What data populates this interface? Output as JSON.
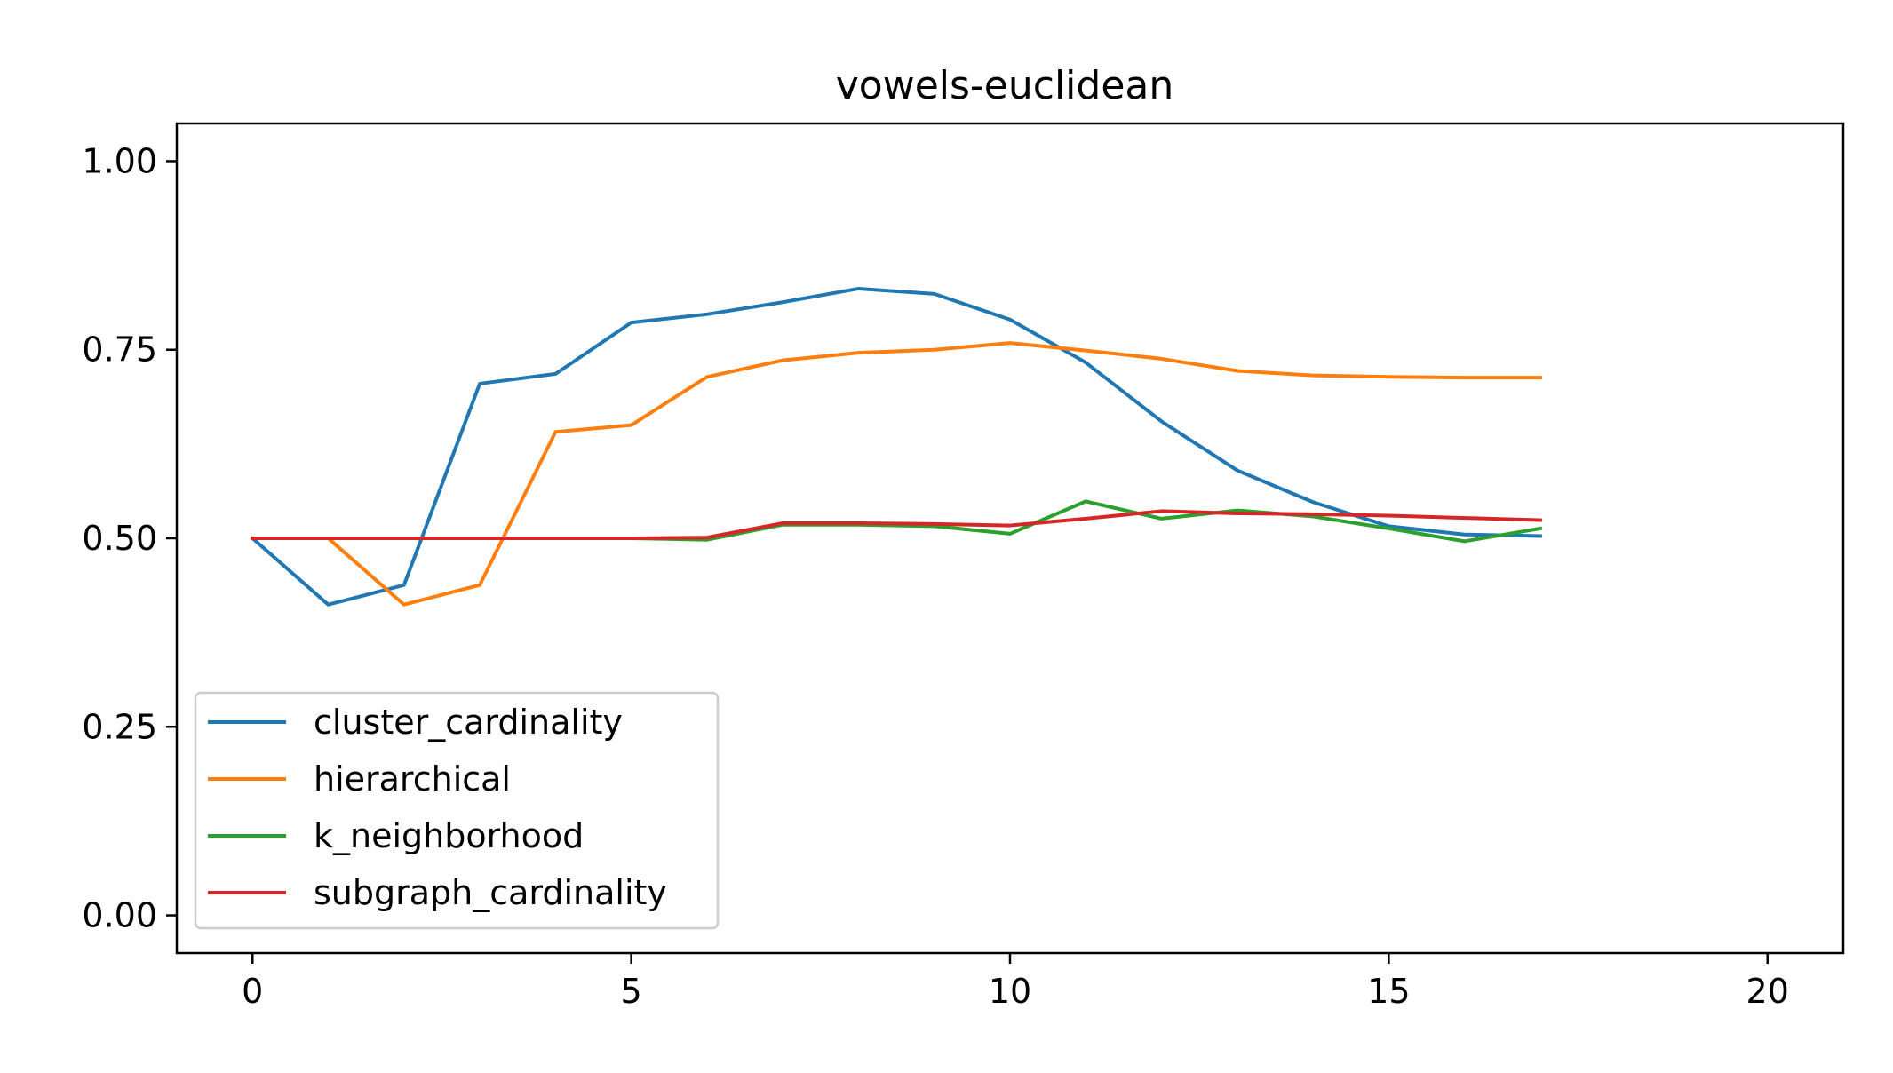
{
  "chart_data": {
    "type": "line",
    "title": "vowels-euclidean",
    "xlabel": "",
    "ylabel": "",
    "xlim": [
      -1,
      21
    ],
    "ylim": [
      -0.05,
      1.05
    ],
    "xticks": [
      0,
      5,
      10,
      15,
      20
    ],
    "xtick_labels": [
      "0",
      "5",
      "10",
      "15",
      "20"
    ],
    "yticks": [
      0.0,
      0.25,
      0.5,
      0.75,
      1.0
    ],
    "ytick_labels": [
      "0.00",
      "0.25",
      "0.50",
      "0.75",
      "1.00"
    ],
    "grid": false,
    "legend_position": "lower-left",
    "x": [
      0,
      1,
      2,
      3,
      4,
      5,
      6,
      7,
      8,
      9,
      10,
      11,
      12,
      13,
      14,
      15,
      16,
      17
    ],
    "series": [
      {
        "name": "cluster_cardinality",
        "color": "#1f77b4",
        "values": [
          0.5,
          0.412,
          0.438,
          0.705,
          0.718,
          0.786,
          0.797,
          0.813,
          0.831,
          0.824,
          0.79,
          0.733,
          0.655,
          0.59,
          0.548,
          0.516,
          0.505,
          0.503
        ]
      },
      {
        "name": "hierarchical",
        "color": "#ff7f0e",
        "values": [
          0.5,
          0.5,
          0.412,
          0.438,
          0.641,
          0.65,
          0.714,
          0.736,
          0.746,
          0.75,
          0.759,
          0.749,
          0.738,
          0.722,
          0.716,
          0.714,
          0.713,
          0.713
        ]
      },
      {
        "name": "k_neighborhood",
        "color": "#2ca02c",
        "values": [
          0.5,
          0.5,
          0.5,
          0.5,
          0.5,
          0.5,
          0.498,
          0.518,
          0.518,
          0.516,
          0.506,
          0.549,
          0.526,
          0.537,
          0.529,
          0.513,
          0.496,
          0.513
        ]
      },
      {
        "name": "subgraph_cardinality",
        "color": "#d62728",
        "values": [
          0.5,
          0.5,
          0.5,
          0.5,
          0.5,
          0.5,
          0.501,
          0.52,
          0.52,
          0.519,
          0.517,
          0.526,
          0.536,
          0.533,
          0.532,
          0.53,
          0.527,
          0.524
        ]
      }
    ]
  }
}
